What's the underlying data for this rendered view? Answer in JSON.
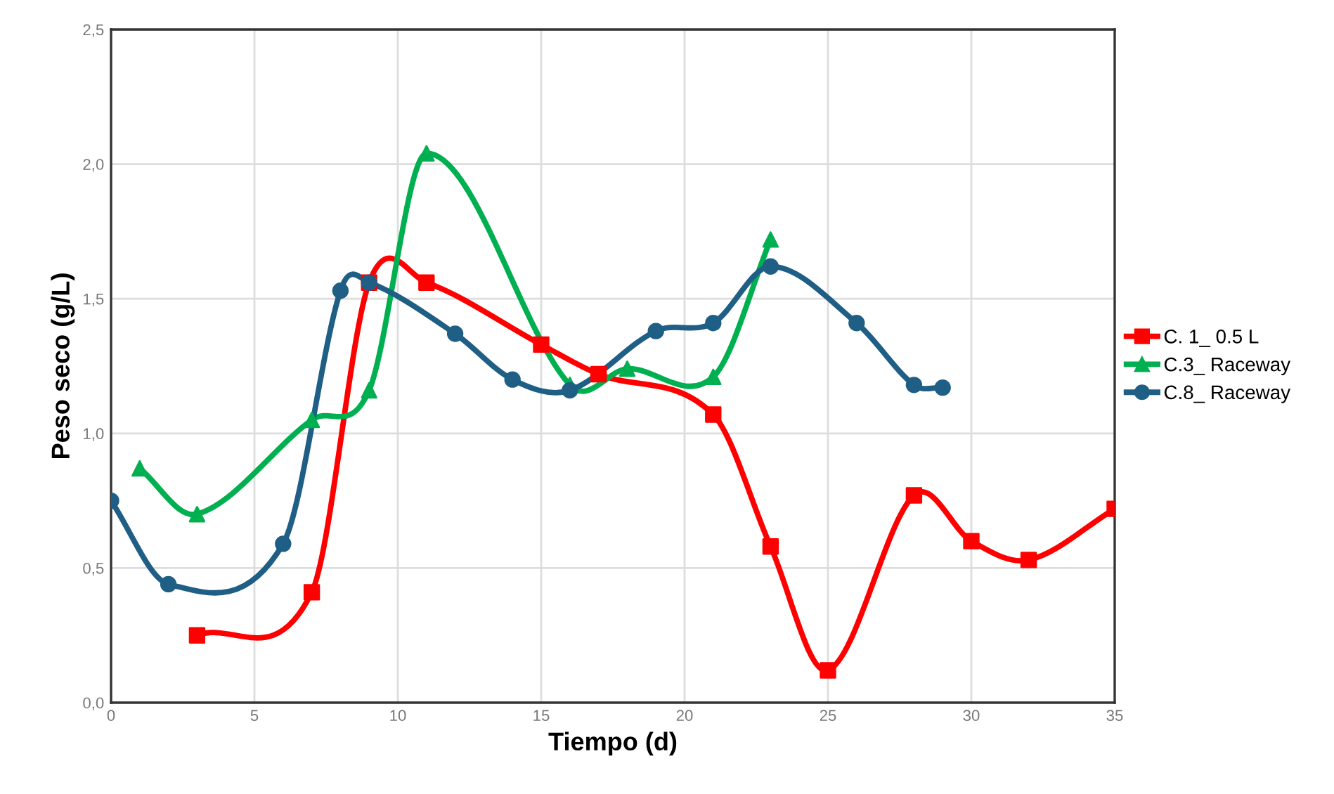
{
  "chart_data": {
    "type": "line",
    "xlabel": "Tiempo (d)",
    "ylabel": "Peso seco (g/L)",
    "xlim": [
      0,
      35
    ],
    "xticks": [
      0,
      5,
      10,
      15,
      20,
      25,
      30,
      35
    ],
    "ylim": [
      0,
      2.5
    ],
    "yticks": [
      {
        "value": 0,
        "label": "0,0"
      },
      {
        "value": 0.5,
        "label": "0,5"
      },
      {
        "value": 1.0,
        "label": "1,0"
      },
      {
        "value": 1.5,
        "label": "1,5"
      },
      {
        "value": 2.0,
        "label": "2,0"
      },
      {
        "value": 2.5,
        "label": "2,5"
      }
    ],
    "grid": true,
    "legend": "right",
    "series": [
      {
        "name": "C. 1_ 0.5 L",
        "color": "#ff0000",
        "marker": "square",
        "x": [
          3,
          7,
          9,
          11,
          15,
          17,
          21,
          23,
          25,
          28,
          30,
          32,
          35
        ],
        "values": [
          0.25,
          0.41,
          1.56,
          1.56,
          1.33,
          1.22,
          1.07,
          0.58,
          0.12,
          0.77,
          0.6,
          0.53,
          0.72
        ]
      },
      {
        "name": "C.3_ Raceway",
        "color": "#00b050",
        "marker": "triangle",
        "x": [
          1,
          3,
          7,
          9,
          11,
          16,
          18,
          21,
          23
        ],
        "values": [
          0.87,
          0.7,
          1.05,
          1.16,
          2.04,
          1.18,
          1.24,
          1.21,
          1.72
        ]
      },
      {
        "name": "C.8_ Raceway",
        "color": "#1f5f85",
        "marker": "circle",
        "x": [
          0,
          2,
          6,
          8,
          9,
          12,
          14,
          16,
          19,
          21,
          23,
          26,
          28,
          29
        ],
        "values": [
          0.75,
          0.44,
          0.59,
          1.53,
          1.56,
          1.37,
          1.2,
          1.16,
          1.38,
          1.41,
          1.62,
          1.41,
          1.18,
          1.17
        ]
      }
    ]
  }
}
